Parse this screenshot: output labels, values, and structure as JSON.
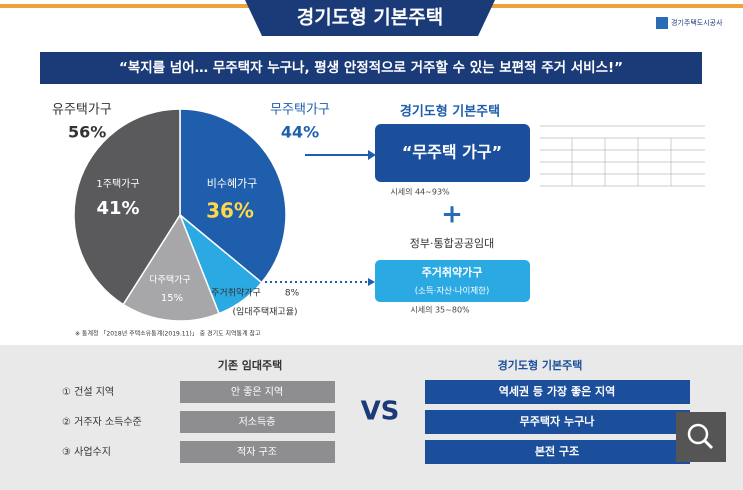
{
  "header": {
    "title": "경기도형 기본주택",
    "logo": "경기주택도시공사"
  },
  "banner": "“복지를 넘어… 무주택자 누구나, 평생 안정적으로 거주할 수 있는 보편적 주거 서비스!”",
  "chart_data": {
    "type": "pie",
    "categories": [
      "1주택가구",
      "다주택가구",
      "비수혜가구",
      "주거취약가구"
    ],
    "values": [
      41,
      15,
      36,
      8
    ],
    "value_labels": [
      "41%",
      "15%",
      "36%",
      "8%"
    ],
    "colors": [
      "#5a5a5c",
      "#a7a7a9",
      "#1e5ead",
      "#2aa9e2"
    ],
    "groups": [
      {
        "name": "유주택가구",
        "value": 56,
        "value_label": "56%"
      },
      {
        "name": "무주택가구",
        "value": 44,
        "value_label": "44%"
      }
    ],
    "annotation": "(임대주택재고율)",
    "source": "※ 통계청 「2018년 주택소유통계(2019.11)」 중 경기도 지역통계 참고"
  },
  "right": {
    "title": "경기도형 기본주택",
    "box": "“무주택 가구”",
    "box_note": "시세의 44~93%",
    "plus": "+",
    "sub_title": "정부·통합공공임대",
    "sub_box": "주거취약가구",
    "sub_box_note": "(소득·자산·나이제한)",
    "sub_note": "시세의 35~80%"
  },
  "comparison": {
    "left_title": "기존 임대주택",
    "right_title": "경기도형 기본주택",
    "vs": "VS",
    "rows": [
      {
        "label": "① 건설 지역",
        "old": "안 좋은 지역",
        "new": "역세권 등 가장 좋은 지역"
      },
      {
        "label": "② 거주자 소득수준",
        "old": "저소득층",
        "new": "무주택자 누구나"
      },
      {
        "label": "③ 사업수지",
        "old": "적자 구조",
        "new": "본전 구조"
      }
    ]
  }
}
